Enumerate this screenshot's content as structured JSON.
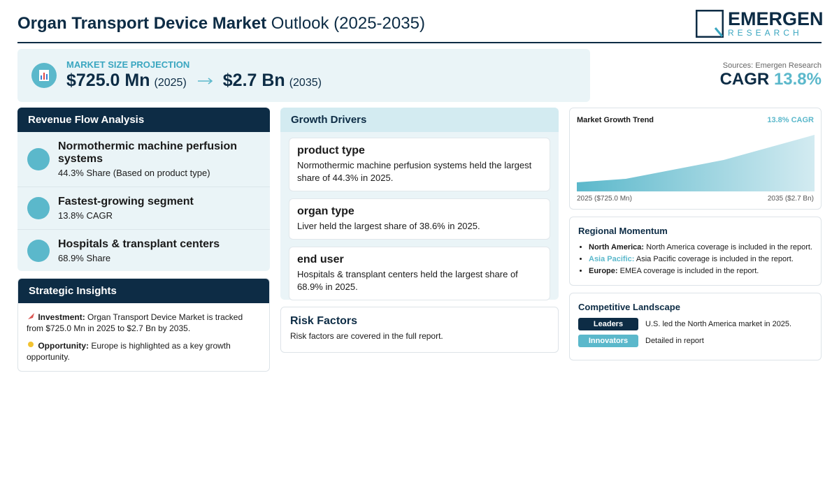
{
  "header": {
    "title_bold": "Organ Transport Device Market",
    "title_rest": "Outlook (2025-2035)",
    "logo_main": "EMERGEN",
    "logo_sub": "RESEARCH"
  },
  "projection": {
    "label": "MARKET SIZE PROJECTION",
    "start_value": "$725.0 Mn",
    "start_year": "(2025)",
    "end_value": "$2.7 Bn",
    "end_year": "(2035)"
  },
  "sources": "Sources: Emergen Research",
  "cagr": {
    "label": "CAGR",
    "value": "13.8%"
  },
  "revenue_flow": {
    "title": "Revenue Flow Analysis",
    "items": [
      {
        "title": "Normothermic machine perfusion systems",
        "detail": "44.3% Share (Based on product type)"
      },
      {
        "title": "Fastest-growing segment",
        "detail": "13.8% CAGR"
      },
      {
        "title": "Hospitals & transplant centers",
        "detail": "68.9% Share"
      }
    ]
  },
  "strategic_insights": {
    "title": "Strategic Insights",
    "items": [
      {
        "label": "Investment:",
        "text": "Organ Transport Device Market is tracked from $725.0 Mn in 2025 to $2.7 Bn by 2035."
      },
      {
        "label": "Opportunity:",
        "text": "Europe is highlighted as a key growth opportunity."
      }
    ]
  },
  "growth_drivers": {
    "title": "Growth Drivers",
    "items": [
      {
        "title": "product type",
        "text": "Normothermic machine perfusion systems held the largest share of 44.3% in 2025."
      },
      {
        "title": "organ type",
        "text": "Liver held the largest share of 38.6% in 2025."
      },
      {
        "title": "end user",
        "text": "Hospitals & transplant centers held the largest share of 68.9% in 2025."
      }
    ]
  },
  "risk_factors": {
    "title": "Risk Factors",
    "text": "Risk factors are covered in the full report."
  },
  "growth_trend": {
    "title": "Market Growth Trend",
    "badge": "13.8% CAGR",
    "start_label": "2025 ($725.0 Mn)",
    "end_label": "2035 ($2.7 Bn)"
  },
  "regional": {
    "title": "Regional Momentum",
    "items": [
      {
        "region": "North America:",
        "text": "North America coverage is included in the report."
      },
      {
        "region": "Asia Pacific:",
        "text": "Asia Pacific coverage is included in the report."
      },
      {
        "region": "Europe:",
        "text": "EMEA coverage is included in the report."
      }
    ]
  },
  "competitive": {
    "title": "Competitive Landscape",
    "items": [
      {
        "tag": "Leaders",
        "text": "U.S. led the North America market in 2025."
      },
      {
        "tag": "Innovators",
        "text": "Detailed in report"
      }
    ]
  }
}
